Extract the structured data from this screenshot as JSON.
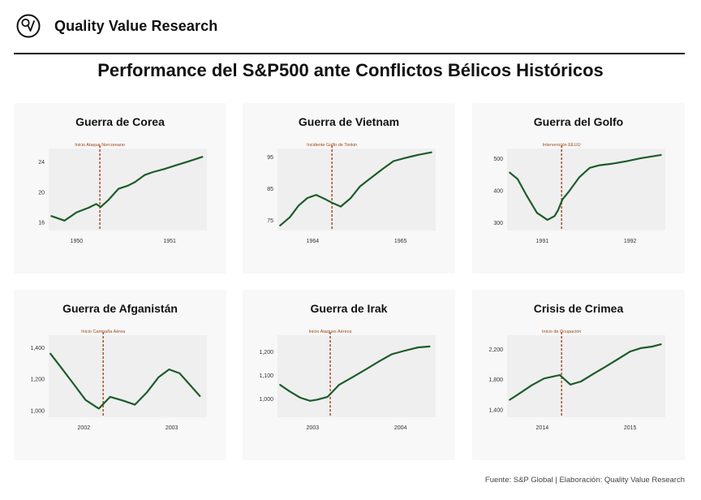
{
  "header": {
    "brand_name": "Quality Value Research",
    "logo_icon": "magnifier-check-icon"
  },
  "page_title": "Performance del S&P500 ante Conflictos Bélicos Históricos",
  "colors": {
    "line": "#1e5c2a",
    "event_line": "#a0471c",
    "event_text": "#a0471c",
    "plot_bg": "#efefef",
    "panel_bg": "#f8f8f8"
  },
  "chart_data": [
    {
      "type": "line",
      "title": "Guerra de Corea",
      "event_label": "Inicio Ataque Norcoreano",
      "event_x": 1950.25,
      "xlim": [
        1949.7,
        1951.4
      ],
      "ylim": [
        14.9,
        25.7
      ],
      "yticks": [
        16,
        20,
        24
      ],
      "ytick_labels": [
        "16",
        "20",
        "24"
      ],
      "xticks": [
        1950,
        1951
      ],
      "xtick_labels": [
        "1950",
        "1951"
      ],
      "x": [
        1949.73,
        1949.87,
        1950.0,
        1950.13,
        1950.21,
        1950.26,
        1950.34,
        1950.45,
        1950.55,
        1950.63,
        1950.73,
        1950.82,
        1950.94,
        1951.07,
        1951.2,
        1951.35
      ],
      "values": [
        16.8,
        16.2,
        17.3,
        17.9,
        18.4,
        18.0,
        18.9,
        20.4,
        20.8,
        21.3,
        22.2,
        22.6,
        23.0,
        23.5,
        24.0,
        24.6
      ]
    },
    {
      "type": "line",
      "title": "Guerra de Vietnam",
      "event_label": "Incidente Golfo de Tonkin",
      "event_x": 1964.22,
      "xlim": [
        1963.6,
        1965.4
      ],
      "ylim": [
        71.6,
        97.6
      ],
      "yticks": [
        75,
        85,
        95
      ],
      "ytick_labels": [
        "75",
        "85",
        "95"
      ],
      "xticks": [
        1964,
        1965
      ],
      "xtick_labels": [
        "1964",
        "1965"
      ],
      "x": [
        1963.63,
        1963.74,
        1963.84,
        1963.94,
        1964.04,
        1964.14,
        1964.22,
        1964.32,
        1964.43,
        1964.54,
        1964.65,
        1964.8,
        1964.92,
        1965.05,
        1965.2,
        1965.35
      ],
      "values": [
        73.2,
        75.8,
        79.5,
        81.9,
        82.9,
        81.6,
        80.4,
        79.2,
        81.8,
        85.6,
        88.0,
        91.2,
        93.6,
        94.6,
        95.6,
        96.4
      ]
    },
    {
      "type": "line",
      "title": "Guerra del Golfo",
      "event_label": "Intervención EEUU",
      "event_x": 1991.22,
      "xlim": [
        1990.6,
        1992.4
      ],
      "ylim": [
        275,
        530
      ],
      "yticks": [
        300,
        400,
        500
      ],
      "ytick_labels": [
        "300",
        "400",
        "500"
      ],
      "xticks": [
        1991,
        1992
      ],
      "xtick_labels": [
        "1991",
        "1992"
      ],
      "x": [
        1990.63,
        1990.72,
        1990.82,
        1990.94,
        1991.06,
        1991.14,
        1991.18,
        1991.23,
        1991.3,
        1991.42,
        1991.54,
        1991.65,
        1991.8,
        1991.95,
        1992.12,
        1992.35
      ],
      "values": [
        455,
        435,
        385,
        330,
        308,
        320,
        338,
        372,
        395,
        440,
        470,
        478,
        483,
        490,
        500,
        510
      ]
    },
    {
      "type": "line",
      "title": "Guerra de Afganistán",
      "event_label": "Inicio Campaña Aérea",
      "event_x": 2002.22,
      "xlim": [
        2001.6,
        2003.4
      ],
      "ylim": [
        955,
        1478
      ],
      "yticks": [
        1000,
        1200,
        1400
      ],
      "ytick_labels": [
        "1,000",
        "1,200",
        "1,400"
      ],
      "xticks": [
        2002,
        2003
      ],
      "xtick_labels": [
        "2002",
        "2003"
      ],
      "x": [
        2001.62,
        2001.75,
        2001.88,
        2002.02,
        2002.17,
        2002.3,
        2002.45,
        2002.58,
        2002.72,
        2002.85,
        2002.97,
        2003.09,
        2003.32
      ],
      "values": [
        1360,
        1265,
        1170,
        1065,
        1010,
        1085,
        1060,
        1035,
        1115,
        1210,
        1260,
        1235,
        1090
      ]
    },
    {
      "type": "line",
      "title": "Guerra de Irak",
      "event_label": "Inicio Ataques Aéreos",
      "event_x": 2003.2,
      "xlim": [
        2002.6,
        2004.4
      ],
      "ylim": [
        920,
        1270
      ],
      "yticks": [
        1000,
        1100,
        1200
      ],
      "ytick_labels": [
        "1,000",
        "1,100",
        "1,200"
      ],
      "xticks": [
        2003,
        2004
      ],
      "xtick_labels": [
        "2003",
        "2004"
      ],
      "x": [
        2002.63,
        2002.74,
        2002.86,
        2002.97,
        2003.05,
        2003.17,
        2003.3,
        2003.45,
        2003.6,
        2003.75,
        2003.9,
        2004.05,
        2004.2,
        2004.33
      ],
      "values": [
        1058,
        1030,
        1003,
        990,
        995,
        1007,
        1058,
        1090,
        1123,
        1157,
        1189,
        1204,
        1218,
        1222
      ]
    },
    {
      "type": "line",
      "title": "Crisis de Crimea",
      "event_label": "Inicio de Ocupación",
      "event_x": 2014.22,
      "xlim": [
        2013.6,
        2015.4
      ],
      "ylim": [
        1300,
        2380
      ],
      "yticks": [
        1400,
        1800,
        2200
      ],
      "ytick_labels": [
        "1,400",
        "1,800",
        "2,200"
      ],
      "xticks": [
        2014,
        2015
      ],
      "xtick_labels": [
        "2014",
        "2015"
      ],
      "x": [
        2013.63,
        2013.75,
        2013.88,
        2014.02,
        2014.2,
        2014.32,
        2014.44,
        2014.58,
        2014.72,
        2014.86,
        2015.0,
        2015.12,
        2015.25,
        2015.35
      ],
      "values": [
        1530,
        1620,
        1720,
        1810,
        1855,
        1730,
        1770,
        1870,
        1965,
        2065,
        2165,
        2210,
        2230,
        2260
      ]
    }
  ],
  "footer": {
    "source": "Fuente: S&P Global | Elaboración: Quality Value Research"
  }
}
